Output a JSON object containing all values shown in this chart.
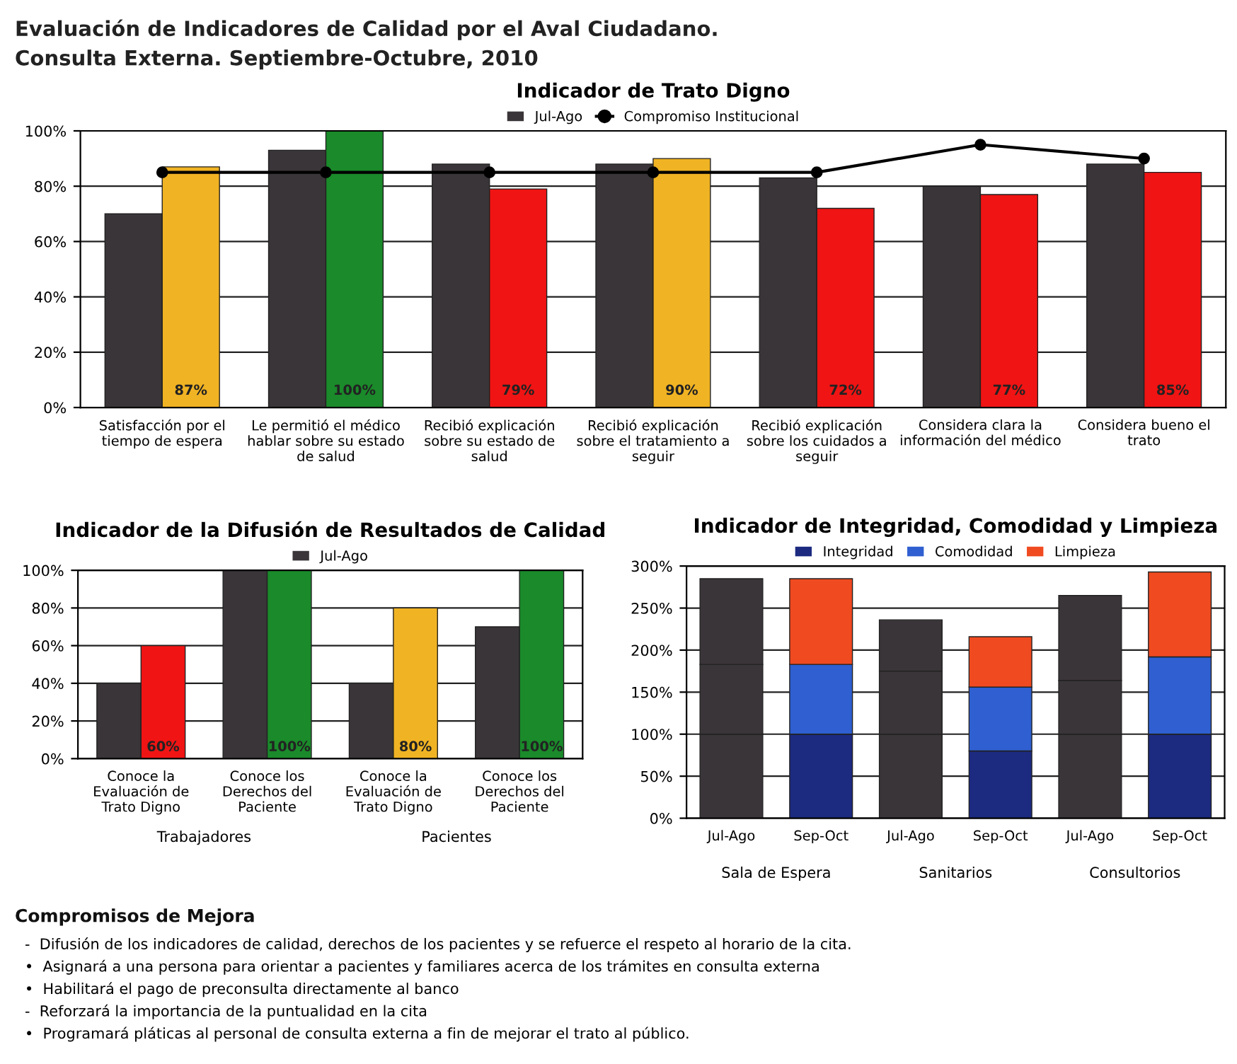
{
  "chart_data": [
    {
      "type": "other",
      "title": "Evaluación de Indicadores de Calidad por el Aval Ciudadano.",
      "subtitle": "Consulta Externa. Septiembre-Octubre, 2010"
    },
    {
      "type": "bar",
      "title": "Indicador de Trato Digno",
      "categories": [
        "Satisfacción por el\ntiempo de espera",
        "Le permitió el médico\nhablar sobre su estado\nde salud",
        "Recibió explicación\nsobre su estado de\nsalud",
        "Recibió explicación\nsobre el tratamiento a\nseguir",
        "Recibió explicación\nsobre los cuidados a\nseguir",
        "Considera clara la\ninformación del médico",
        "Considera bueno el\ntrato"
      ],
      "series": [
        {
          "name": "Jul-Ago",
          "color": "#3a3538",
          "values": [
            70,
            93,
            88,
            88,
            83,
            80,
            88
          ]
        },
        {
          "colors": [
            "#f0b323",
            "#1a8a2a",
            "#f01414",
            "#f0b323",
            "#f01414",
            "#f01414",
            "#f01414"
          ],
          "values": [
            87,
            100,
            79,
            90,
            72,
            77,
            85
          ],
          "value_labels": [
            "87%",
            "100%",
            "79%",
            "90%",
            "72%",
            "77%",
            "85%"
          ]
        },
        {
          "name": "Compromiso Institucional",
          "type": "line",
          "color": "#000000",
          "marker": "circle",
          "values": [
            85,
            85,
            85,
            85,
            85,
            95,
            90
          ]
        }
      ],
      "ylim": [
        0,
        100
      ],
      "yticks": [
        {
          "value": 0,
          "label": "0%"
        },
        {
          "value": 20,
          "label": "20%"
        },
        {
          "value": 40,
          "label": "40%"
        },
        {
          "value": 60,
          "label": "60%"
        },
        {
          "value": 80,
          "label": "80%"
        },
        {
          "value": 100,
          "label": "100%"
        }
      ],
      "grid": "y",
      "legend": "top"
    },
    {
      "type": "bar",
      "title": "Indicador de la Difusión de Resultados de Calidad",
      "categories": [
        "Conoce la\nEvaluación de\nTrato Digno",
        "Conoce los\nDerechos del\nPaciente",
        "Conoce la\nEvaluación de\nTrato Digno",
        "Conoce los\nDerechos del\nPaciente"
      ],
      "series": [
        {
          "name": "Jul-Ago",
          "color": "#3a3538",
          "values": [
            40,
            100,
            40,
            70
          ]
        },
        {
          "colors": [
            "#f01414",
            "#1a8a2a",
            "#f0b323",
            "#1a8a2a"
          ],
          "values": [
            60,
            100,
            80,
            100
          ],
          "value_labels": [
            "60%",
            "100%",
            "80%",
            "100%"
          ]
        }
      ],
      "ylim": [
        0,
        100
      ],
      "yticks": [
        {
          "value": 0,
          "label": "0%"
        },
        {
          "value": 20,
          "label": "20%"
        },
        {
          "value": 40,
          "label": "40%"
        },
        {
          "value": 60,
          "label": "60%"
        },
        {
          "value": 80,
          "label": "80%"
        },
        {
          "value": 100,
          "label": "100%"
        }
      ],
      "grid": "y",
      "legend": "top",
      "annotations": [
        "Trabajadores",
        "Pacientes"
      ]
    },
    {
      "type": "bar",
      "stacked": true,
      "title": "Indicador de Integridad, Comodidad y Limpieza",
      "categories": [
        "Jul-Ago",
        "Sep-Oct",
        "Jul-Ago",
        "Sep-Oct",
        "Jul-Ago",
        "Sep-Oct"
      ],
      "series": [
        {
          "name": "Integridad",
          "color": "#1c2a80",
          "colors": [
            "#3a3538",
            "#1c2a80",
            "#3a3538",
            "#1c2a80",
            "#3a3538",
            "#1c2a80"
          ],
          "values": [
            100,
            100,
            100,
            80,
            100,
            100
          ]
        },
        {
          "name": "Comodidad",
          "color": "#2f5fd0",
          "colors": [
            "#3a3538",
            "#2f5fd0",
            "#3a3538",
            "#2f5fd0",
            "#3a3538",
            "#2f5fd0"
          ],
          "values": [
            83,
            83,
            75,
            76,
            64,
            92
          ]
        },
        {
          "name": "Limpieza",
          "color": "#f04a20",
          "colors": [
            "#3a3538",
            "#f04a20",
            "#3a3538",
            "#f04a20",
            "#3a3538",
            "#f04a20"
          ],
          "values": [
            102,
            102,
            61,
            60,
            101,
            101
          ]
        }
      ],
      "ylim": [
        0,
        300
      ],
      "yticks": [
        {
          "value": 0,
          "label": "0%"
        },
        {
          "value": 50,
          "label": "50%"
        },
        {
          "value": 100,
          "label": "100%"
        },
        {
          "value": 150,
          "label": "150%"
        },
        {
          "value": 200,
          "label": "200%"
        },
        {
          "value": 250,
          "label": "250%"
        },
        {
          "value": 300,
          "label": "300%"
        }
      ],
      "grid": "y",
      "legend": "top",
      "annotations": [
        "Sala de Espera",
        "Sanitarios",
        "Consultorios"
      ]
    },
    {
      "type": "other",
      "title": "Compromisos de Mejora",
      "annotations": [
        "-  Difusión de los indicadores de calidad, derechos de los pacientes y se refuerce el respeto al horario de la cita.",
        "•  Asignará a una persona para orientar a pacientes y familiares acerca de los trámites en consulta externa",
        "•  Habilitará el pago de preconsulta directamente al banco",
        "-  Reforzará la importancia de la puntualidad en la cita",
        "•  Programará pláticas al personal de consulta externa a fin de mejorar el trato al público."
      ]
    }
  ]
}
